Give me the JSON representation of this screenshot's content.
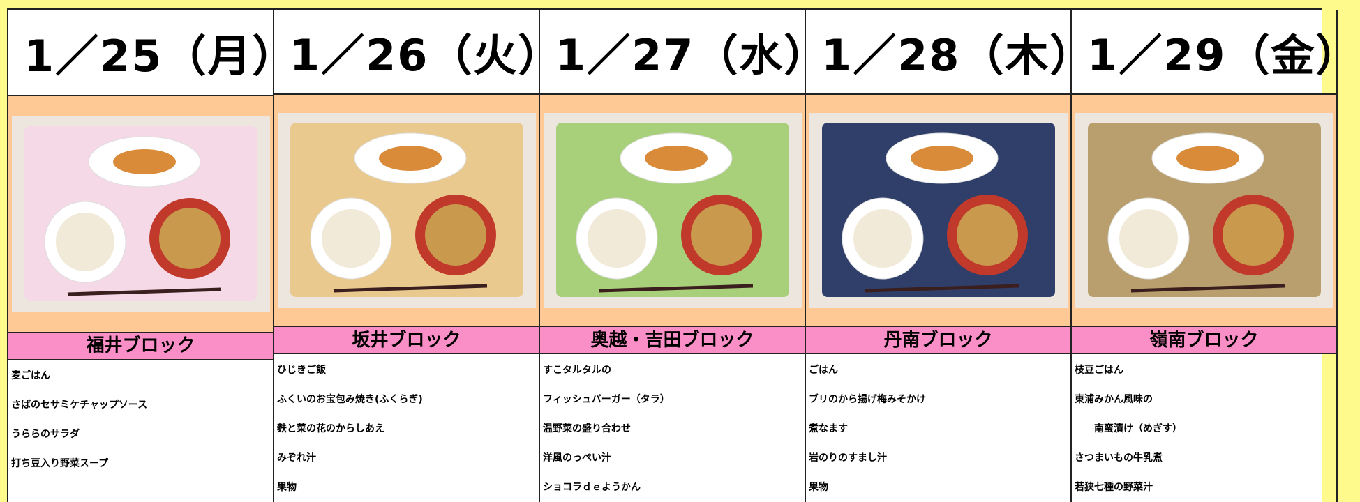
{
  "days": [
    {
      "date": "1／25（月）",
      "block": "福井ブロック",
      "menu": [
        "麦ごはん",
        "さばのセサミケチャップソース",
        "うららのサラダ",
        "打ち豆入り野菜スープ"
      ]
    },
    {
      "date": "1／26（火）",
      "block": "坂井ブロック",
      "menu": [
        "ひじきご飯",
        "ふくいのお宝包み焼き(ふくらぎ)",
        "麩と菜の花のからしあえ",
        "みぞれ汁",
        "果物"
      ]
    },
    {
      "date": "1／27（水）",
      "block": "奥越・吉田ブロック",
      "menu": [
        "すこタルタルの",
        "フィッシュバーガー（タラ）",
        "温野菜の盛り合わせ",
        "洋風のっぺい汁",
        "ショコラｄｅようかん"
      ]
    },
    {
      "date": "1／28（木）",
      "block": "丹南ブロック",
      "menu": [
        "ごはん",
        "ブリのから揚げ梅みそかけ",
        "煮なます",
        "岩のりのすまし汁",
        "果物"
      ]
    },
    {
      "date": "1／29（金）",
      "block": "嶺南ブロック",
      "menu": [
        "枝豆ごはん",
        "東浦みかん風味の",
        "　　南蛮漬け（めぎす）",
        "さつまいもの牛乳煮",
        "若狭七種の野菜汁"
      ]
    }
  ]
}
